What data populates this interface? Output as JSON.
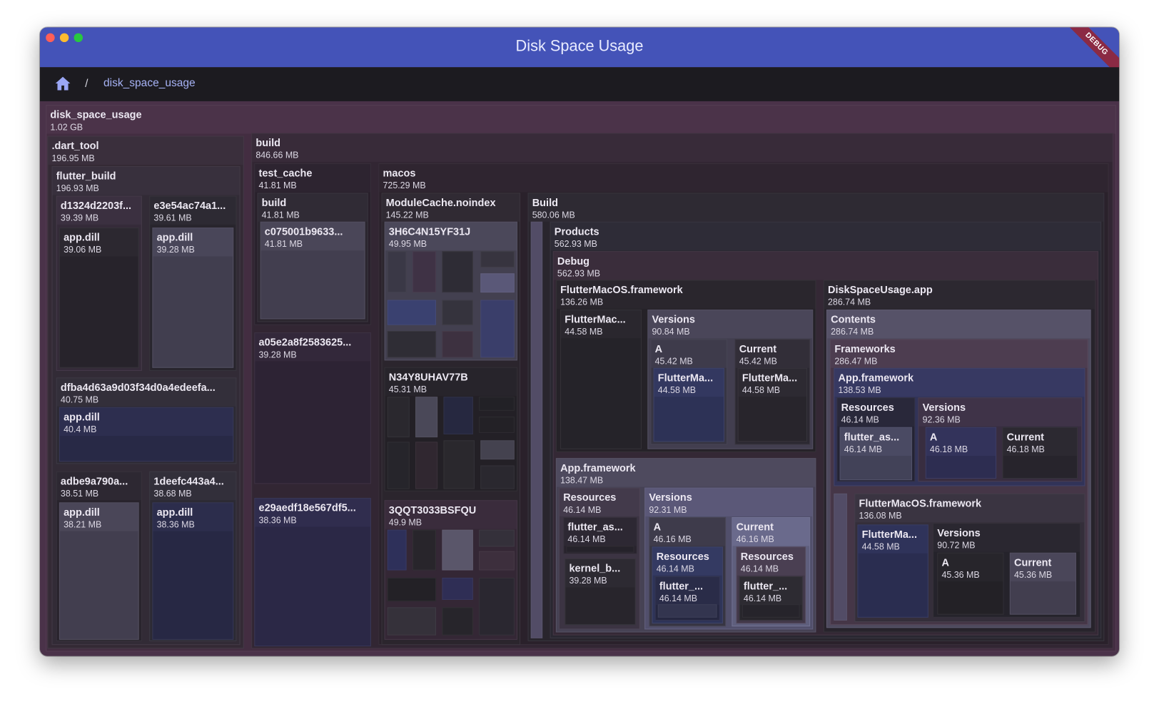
{
  "window": {
    "title": "Disk Space Usage",
    "debug_banner": "DEBUG"
  },
  "breadcrumb": {
    "home_icon": "home-icon",
    "separator": "/",
    "current": "disk_space_usage"
  },
  "colors": {
    "titlebar": "#4453b8",
    "breadcrumb_bar": "#1c1b20",
    "home_icon": "#9aa6f4",
    "crumb": "#a6b2f4"
  },
  "nodes": [
    {
      "name": "disk_space_usage",
      "size": "1.02 GB",
      "color": "#4b3349"
    },
    {
      "name": ".dart_tool",
      "size": "196.95 MB",
      "color": "#3a2f3c"
    },
    {
      "name": "flutter_build",
      "size": "196.93 MB",
      "color": "#38303d"
    },
    {
      "name": "d1324d2203f...",
      "size": "39.39 MB",
      "color": "#3b3040"
    },
    {
      "name": "app.dill",
      "size": "39.06 MB",
      "color": "#2c2830"
    },
    {
      "name": "e3e54ac74a1...",
      "size": "39.61 MB",
      "color": "#2d2a33"
    },
    {
      "name": "app.dill",
      "size": "39.28 MB",
      "color": "#494659"
    },
    {
      "name": "dfba4d63a9d03f34d0a4edeefa...",
      "size": "40.75 MB",
      "color": "#332f3a"
    },
    {
      "name": "app.dill",
      "size": "40.4 MB",
      "color": "#2d2e4f"
    },
    {
      "name": "adbe9a790a...",
      "size": "38.51 MB",
      "color": "#2d2832"
    },
    {
      "name": "app.dill",
      "size": "38.21 MB",
      "color": "#4a4658"
    },
    {
      "name": "1deefc443a4...",
      "size": "38.68 MB",
      "color": "#322f3a"
    },
    {
      "name": "app.dill",
      "size": "38.36 MB",
      "color": "#2c2d4c"
    },
    {
      "name": "build",
      "size": "846.66 MB",
      "color": "#382b39"
    },
    {
      "name": "test_cache",
      "size": "41.81 MB",
      "color": "#2d2430"
    },
    {
      "name": "build",
      "size": "41.81 MB",
      "color": "#302b35"
    },
    {
      "name": "c075001b9633...",
      "size": "41.81 MB",
      "color": "#4a4658"
    },
    {
      "name": "a05e2a8f2583625...",
      "size": "39.28 MB",
      "color": "#33283a"
    },
    {
      "name": "e29aedf18e567df5...",
      "size": "38.36 MB",
      "color": "#302d4e"
    },
    {
      "name": "macos",
      "size": "725.29 MB",
      "color": "#2f2530"
    },
    {
      "name": "ModuleCache.noindex",
      "size": "145.22 MB",
      "color": "#302a33"
    },
    {
      "name": "3H6C4N15YF31J",
      "size": "49.95 MB",
      "color": "#4b485a"
    },
    {
      "name": "N34Y8UHAV77B",
      "size": "45.31 MB",
      "color": "#27242b"
    },
    {
      "name": "3QQT3033BSFQU",
      "size": "49.9 MB",
      "color": "#3a2c3c"
    },
    {
      "name": "Build",
      "size": "580.06 MB",
      "color": "#2e2a33"
    },
    {
      "name": "Products",
      "size": "562.93 MB",
      "color": "#2e2c37"
    },
    {
      "name": "Debug",
      "size": "562.93 MB",
      "color": "#3a2d3b"
    },
    {
      "name": "FlutterMacOS.framework",
      "size": "136.26 MB",
      "color": "#2a262d"
    },
    {
      "name": "FlutterMac...",
      "size": "44.58 MB",
      "color": "#2a272e"
    },
    {
      "name": "Versions",
      "size": "90.84 MB",
      "color": "#4a4659"
    },
    {
      "name": "A",
      "size": "45.42 MB",
      "color": "#3e3b4b"
    },
    {
      "name": "FlutterMa...",
      "size": "44.58 MB",
      "color": "#333860"
    },
    {
      "name": "Current",
      "size": "45.42 MB",
      "color": "#322e38"
    },
    {
      "name": "FlutterMa...",
      "size": "44.58 MB",
      "color": "#2d2a32"
    },
    {
      "name": "App.framework",
      "size": "138.47 MB",
      "color": "#4e4a5e"
    },
    {
      "name": "Resources",
      "size": "46.14 MB",
      "color": "#433a4b"
    },
    {
      "name": "flutter_as...",
      "size": "46.14 MB",
      "color": "#2d2833"
    },
    {
      "name": "kernel_b...",
      "size": "39.28 MB",
      "color": "#2d2a32"
    },
    {
      "name": "Versions",
      "size": "92.31 MB",
      "color": "#5b5878"
    },
    {
      "name": "A",
      "size": "46.16 MB",
      "color": "#3e3b4b"
    },
    {
      "name": "Resources",
      "size": "46.14 MB",
      "color": "#343a62"
    },
    {
      "name": "flutter_...",
      "size": "46.14 MB",
      "color": "#2a2c48"
    },
    {
      "name": "Current",
      "size": "46.16 MB",
      "color": "#6a6a8c"
    },
    {
      "name": "Resources",
      "size": "46.14 MB",
      "color": "#4a3f52"
    },
    {
      "name": "flutter_...",
      "size": "46.14 MB",
      "color": "#2d2b32"
    },
    {
      "name": "DiskSpaceUsage.app",
      "size": "286.74 MB",
      "color": "#2c2830"
    },
    {
      "name": "Contents",
      "size": "286.74 MB",
      "color": "#565268"
    },
    {
      "name": "Frameworks",
      "size": "286.47 MB",
      "color": "#4d3d50"
    },
    {
      "name": "App.framework",
      "size": "138.53 MB",
      "color": "#373962"
    },
    {
      "name": "Resources",
      "size": "46.14 MB",
      "color": "#29283a"
    },
    {
      "name": "flutter_as...",
      "size": "46.14 MB",
      "color": "#4a4a63"
    },
    {
      "name": "Versions",
      "size": "92.36 MB",
      "color": "#3f3348"
    },
    {
      "name": "A",
      "size": "46.18 MB",
      "color": "#33335b"
    },
    {
      "name": "Current",
      "size": "46.18 MB",
      "color": "#2c2931"
    },
    {
      "name": "FlutterMacOS.framework",
      "size": "136.08 MB",
      "color": "#3a3441"
    },
    {
      "name": "FlutterMa...",
      "size": "44.58 MB",
      "color": "#2f335a"
    },
    {
      "name": "Versions",
      "size": "90.72 MB",
      "color": "#2a2730"
    },
    {
      "name": "A",
      "size": "45.36 MB",
      "color": "#27252b"
    },
    {
      "name": "Current",
      "size": "45.36 MB",
      "color": "#4a4659"
    }
  ],
  "strip_color": "#524c66",
  "module_tiles": {
    "3H6C4N15YF31J": [
      "#3a3846",
      "#3f3245",
      "#2e2c35",
      "#37343f",
      "#5a5878",
      "#3a4170",
      "#35333d",
      "#3a3e6a",
      "#2f2d35",
      "#3d3140"
    ],
    "N34Y8UHAV77B": [
      "#2a282e",
      "#4a4858",
      "#262840",
      "#222126",
      "#232126",
      "#26252b",
      "#302730",
      "#2a282d",
      "#44424f",
      "#2a282f"
    ],
    "3QQT3033BSFQU": [
      "#2e305a",
      "#28252b",
      "#5a566a",
      "#34303a",
      "#3d2f3d",
      "#232126",
      "#2f2e55",
      "#2a2730",
      "#35313a",
      "#27252b"
    ]
  }
}
